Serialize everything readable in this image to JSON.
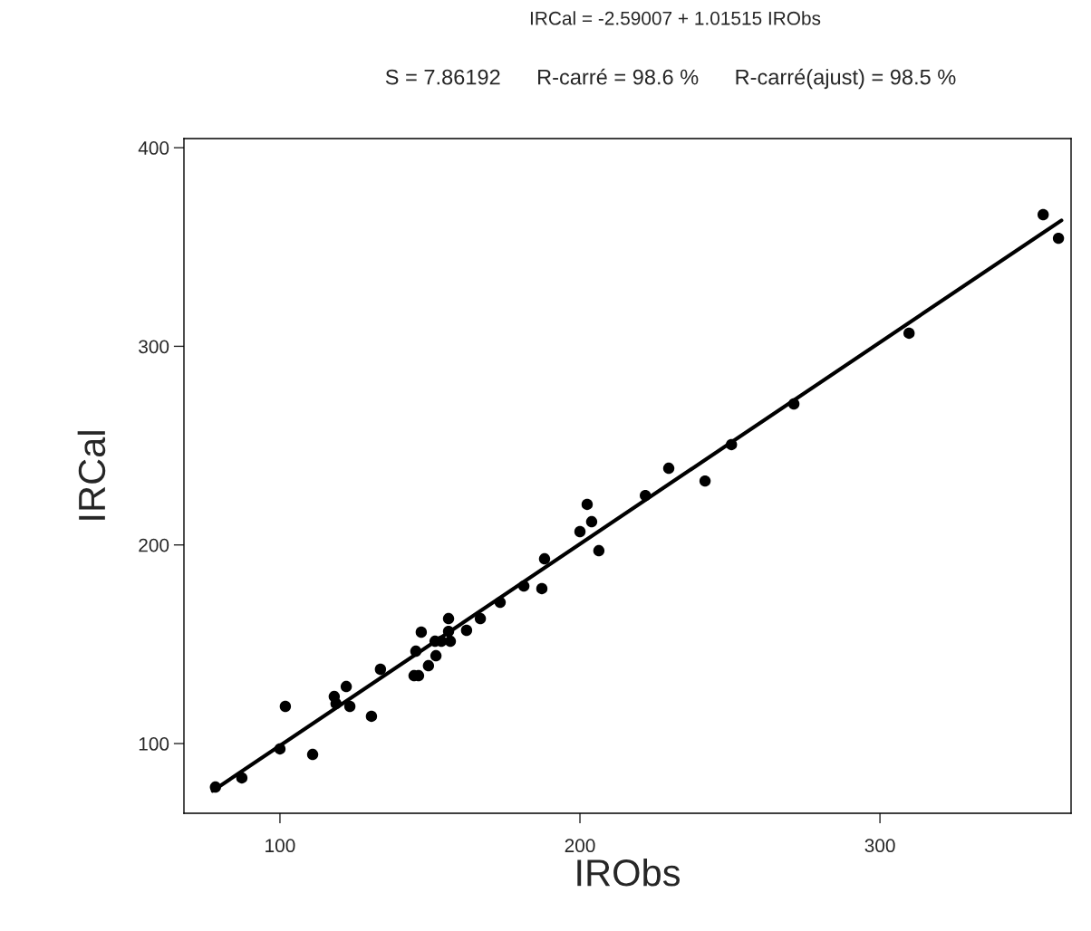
{
  "chart_data": {
    "type": "scatter",
    "title": "IRCal = -2.59007 + 1.01515 IRObs",
    "subtitle": "S = 7.86192      R-carré = 98.6 %      R-carré(ajust) = 98.5 %",
    "xlabel": "IRObs",
    "ylabel": "IRCal",
    "xlim": [
      68,
      363.7
    ],
    "ylim": [
      64.9,
      404.6
    ],
    "xticks": [
      100,
      200,
      300
    ],
    "yticks": [
      100,
      200,
      300,
      400
    ],
    "grid": false,
    "series": [
      {
        "marker": "circle",
        "color": "#000000",
        "x": [
          78.5,
          87.3,
          100,
          101.8,
          110.9,
          118.1,
          118.7,
          122.1,
          123.3,
          130.5,
          133.5,
          144.7,
          146.2,
          147.1,
          145.3,
          149.5,
          152.0,
          151.7,
          153.8,
          156.8,
          156.2,
          156.2,
          162.2,
          166.8,
          173.4,
          181.3,
          187.3,
          188.2,
          200.0,
          202.4,
          203.9,
          206.3,
          221.8,
          229.6,
          241.7,
          250.5,
          271.3,
          309.7,
          354.4,
          359.5
        ],
        "values": [
          78.1,
          82.7,
          97.3,
          118.7,
          94.5,
          123.7,
          120.1,
          128.7,
          118.7,
          113.7,
          137.4,
          134.2,
          134.2,
          156.1,
          146.5,
          139.2,
          144.2,
          151.5,
          151.5,
          151.5,
          162.9,
          156.5,
          157.0,
          162.9,
          171.1,
          179.3,
          178.0,
          193.0,
          206.7,
          220.4,
          211.7,
          197.1,
          224.9,
          238.6,
          232.2,
          250.5,
          271.0,
          306.6,
          366.3,
          354.4
        ]
      },
      {
        "type": "line",
        "marker": "none",
        "color": "#000000",
        "line_style": "solid",
        "x": [
          77.6,
          360.5
        ],
        "values": [
          76.2,
          363.4
        ]
      }
    ]
  }
}
